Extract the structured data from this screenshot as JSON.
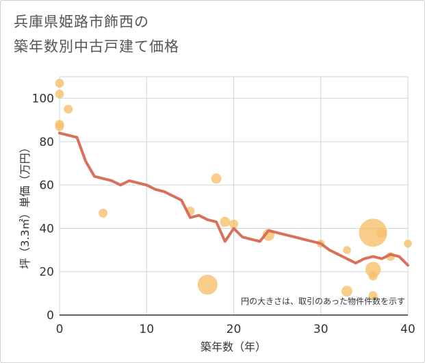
{
  "chart_data": {
    "type": "scatter",
    "title_lines": [
      "兵庫県姫路市飾西の",
      "築年数別中古戸建て価格"
    ],
    "xlabel": "築年数（年）",
    "ylabel": "坪（3.3㎡）単価（万円）",
    "xlim": [
      0,
      40
    ],
    "ylim": [
      0,
      110
    ],
    "x_ticks": [
      0,
      10,
      20,
      30,
      40
    ],
    "y_ticks": [
      0,
      20,
      40,
      60,
      80,
      100
    ],
    "grid": true,
    "note": "円の大きさは、取引のあった物件件数を示す",
    "colors": {
      "bubble": "#f5c06b",
      "line": "#d9705a",
      "grid": "#c9d6e3"
    },
    "series": [
      {
        "type": "bubble",
        "points": [
          {
            "x": 0,
            "y": 107,
            "r": 1
          },
          {
            "x": 0,
            "y": 102,
            "r": 1
          },
          {
            "x": 0,
            "y": 88,
            "r": 1
          },
          {
            "x": 0,
            "y": 87,
            "r": 1
          },
          {
            "x": 1,
            "y": 95,
            "r": 1
          },
          {
            "x": 5,
            "y": 47,
            "r": 1
          },
          {
            "x": 15,
            "y": 48,
            "r": 1
          },
          {
            "x": 17,
            "y": 14,
            "r": 5
          },
          {
            "x": 18,
            "y": 63,
            "r": 1.3
          },
          {
            "x": 19,
            "y": 43,
            "r": 1.3
          },
          {
            "x": 20,
            "y": 42,
            "r": 1
          },
          {
            "x": 24,
            "y": 37,
            "r": 1.8
          },
          {
            "x": 30,
            "y": 33,
            "r": 0.8
          },
          {
            "x": 33,
            "y": 11,
            "r": 1.5
          },
          {
            "x": 33,
            "y": 30,
            "r": 0.8
          },
          {
            "x": 36,
            "y": 38,
            "r": 10
          },
          {
            "x": 36,
            "y": 21,
            "r": 3
          },
          {
            "x": 36,
            "y": 18,
            "r": 1
          },
          {
            "x": 36,
            "y": 9,
            "r": 1
          },
          {
            "x": 37,
            "y": 38,
            "r": 1.3
          },
          {
            "x": 38,
            "y": 27,
            "r": 1
          },
          {
            "x": 40,
            "y": 33,
            "r": 0.8
          }
        ]
      },
      {
        "type": "line",
        "x": [
          0,
          1,
          2,
          3,
          4,
          5,
          6,
          7,
          8,
          9,
          10,
          11,
          12,
          13,
          14,
          15,
          16,
          17,
          18,
          19,
          20,
          21,
          22,
          23,
          24,
          25,
          26,
          27,
          28,
          29,
          30,
          31,
          32,
          33,
          34,
          35,
          36,
          37,
          38,
          39,
          40
        ],
        "y": [
          84,
          83,
          82,
          71,
          64,
          63,
          62,
          60,
          62,
          61,
          60,
          58,
          57,
          55,
          53,
          45,
          46,
          44,
          43,
          34,
          40,
          36,
          35,
          34,
          39,
          38,
          37,
          36,
          35,
          34,
          33,
          30,
          28,
          26,
          24,
          26,
          27,
          26,
          28,
          27,
          23
        ]
      }
    ]
  }
}
